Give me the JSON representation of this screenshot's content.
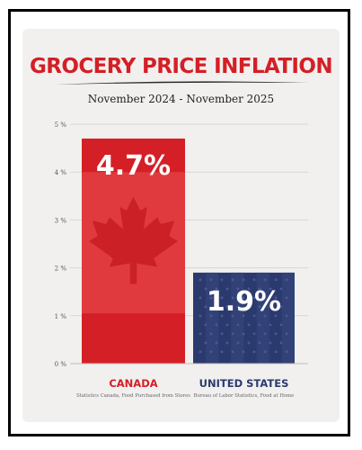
{
  "chart_data": {
    "type": "bar",
    "title": "GROCERY PRICE INFLATION",
    "subtitle": "November 2024 - November 2025",
    "categories": [
      "CANADA",
      "UNITED STATES"
    ],
    "values": [
      4.7,
      1.9
    ],
    "value_labels": [
      "4.7%",
      "1.9%"
    ],
    "sources": [
      "Statistics Canada, Food Purchased from Stores",
      "Bureau of Labor Statistics, Food at Home"
    ],
    "ylim": [
      0,
      5
    ],
    "yticks": [
      "0 %",
      "1 %",
      "2 %",
      "3 %",
      "4 %",
      "5 %"
    ],
    "grid": true,
    "colors": {
      "canada": "#d41f26",
      "united_states": "#2b3a6e",
      "title": "#d41f26"
    }
  }
}
